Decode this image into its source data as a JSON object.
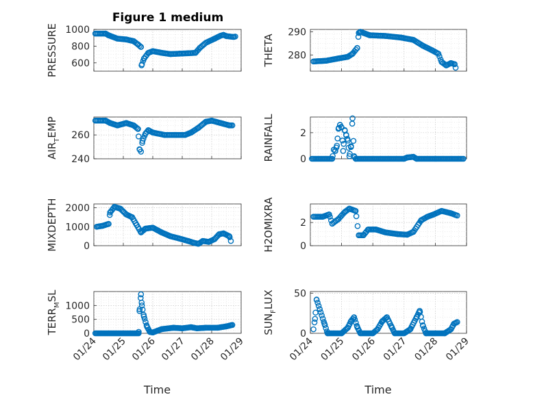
{
  "figure": {
    "title": "Figure 1 medium",
    "marker_color": "#0072BD"
  },
  "chart_data": [
    {
      "id": "pressure",
      "type": "scatter",
      "ylabel": "PRESSURE",
      "ylabel_sub": "",
      "ylabel_suffix": "",
      "xlim": [
        0,
        5
      ],
      "ylim": [
        500,
        1000
      ],
      "yticks": [
        600,
        800,
        1000
      ],
      "xticks": [
        0,
        1,
        2,
        3,
        4,
        5
      ],
      "xtick_labels": [
        "01/24",
        "01/25",
        "01/26",
        "01/27",
        "01/28",
        "01/29"
      ],
      "show_xticklabels": false,
      "xlabel": "",
      "grid": true,
      "keys": [
        [
          0.05,
          950
        ],
        [
          0.4,
          950
        ],
        [
          0.5,
          930
        ],
        [
          0.8,
          890
        ],
        [
          1.1,
          880
        ],
        [
          1.35,
          860
        ],
        [
          1.5,
          820
        ],
        [
          1.6,
          790
        ],
        [
          1.62,
          570
        ],
        [
          1.7,
          650
        ],
        [
          1.85,
          720
        ],
        [
          2.0,
          740
        ],
        [
          2.3,
          720
        ],
        [
          2.6,
          705
        ],
        [
          2.9,
          710
        ],
        [
          3.2,
          715
        ],
        [
          3.45,
          720
        ],
        [
          3.6,
          780
        ],
        [
          3.8,
          840
        ],
        [
          4.1,
          890
        ],
        [
          4.3,
          925
        ],
        [
          4.4,
          935
        ],
        [
          4.5,
          920
        ],
        [
          4.75,
          910
        ],
        [
          4.8,
          915
        ]
      ],
      "count": 115
    },
    {
      "id": "theta",
      "type": "scatter",
      "ylabel": "THETA",
      "ylabel_sub": "",
      "ylabel_suffix": "",
      "xlim": [
        0,
        5
      ],
      "ylim": [
        273,
        291
      ],
      "yticks": [
        280,
        290
      ],
      "xticks": [
        0,
        1,
        2,
        3,
        4,
        5
      ],
      "xtick_labels": [
        "01/24",
        "01/25",
        "01/26",
        "01/27",
        "01/28",
        "01/29"
      ],
      "show_xticklabels": false,
      "xlabel": "",
      "grid": true,
      "keys": [
        [
          0.1,
          277.2
        ],
        [
          0.5,
          277.5
        ],
        [
          0.9,
          278.5
        ],
        [
          1.2,
          279.2
        ],
        [
          1.35,
          280.5
        ],
        [
          1.5,
          283
        ],
        [
          1.55,
          289.5
        ],
        [
          1.6,
          290
        ],
        [
          1.9,
          288.5
        ],
        [
          2.4,
          288.2
        ],
        [
          2.9,
          287.5
        ],
        [
          3.3,
          286.5
        ],
        [
          3.6,
          284
        ],
        [
          3.9,
          282
        ],
        [
          4.1,
          280.5
        ],
        [
          4.2,
          277
        ],
        [
          4.35,
          275.5
        ],
        [
          4.5,
          276.5
        ],
        [
          4.62,
          276
        ],
        [
          4.65,
          274.5
        ]
      ],
      "count": 115
    },
    {
      "id": "airtemp",
      "type": "scatter",
      "ylabel": "AIR",
      "ylabel_sub": "T",
      "ylabel_suffix": "EMP",
      "xlim": [
        0,
        5
      ],
      "ylim": [
        240,
        275
      ],
      "yticks": [
        240,
        260
      ],
      "xticks": [
        0,
        1,
        2,
        3,
        4,
        5
      ],
      "xtick_labels": [
        "01/24",
        "01/25",
        "01/26",
        "01/27",
        "01/28",
        "01/29"
      ],
      "show_xticklabels": false,
      "xlabel": "",
      "grid": true,
      "keys": [
        [
          0.05,
          272
        ],
        [
          0.4,
          272
        ],
        [
          0.55,
          270
        ],
        [
          0.8,
          268
        ],
        [
          1.1,
          270
        ],
        [
          1.35,
          268
        ],
        [
          1.5,
          265
        ],
        [
          1.55,
          248
        ],
        [
          1.6,
          246
        ],
        [
          1.65,
          255
        ],
        [
          1.75,
          261
        ],
        [
          1.85,
          264
        ],
        [
          2.0,
          262
        ],
        [
          2.4,
          260
        ],
        [
          2.8,
          260
        ],
        [
          3.1,
          260
        ],
        [
          3.3,
          262
        ],
        [
          3.55,
          266
        ],
        [
          3.8,
          271
        ],
        [
          4.0,
          272
        ],
        [
          4.3,
          270
        ],
        [
          4.6,
          268
        ],
        [
          4.7,
          268
        ]
      ],
      "count": 115
    },
    {
      "id": "rainfall",
      "type": "scatter",
      "ylabel": "RAINFALL",
      "ylabel_sub": "",
      "ylabel_suffix": "",
      "xlim": [
        0,
        5
      ],
      "ylim": [
        0,
        3.2
      ],
      "yticks": [
        0,
        2
      ],
      "xticks": [
        0,
        1,
        2,
        3,
        4,
        5
      ],
      "xtick_labels": [
        "01/24",
        "01/25",
        "01/26",
        "01/27",
        "01/28",
        "01/29"
      ],
      "show_xticklabels": false,
      "xlabel": "",
      "grid": true,
      "keys": [
        [
          0.05,
          0
        ],
        [
          0.7,
          0
        ],
        [
          0.75,
          0.7
        ],
        [
          0.8,
          0.6
        ],
        [
          0.85,
          1.0
        ],
        [
          0.9,
          2.3
        ],
        [
          0.95,
          2.6
        ],
        [
          1.0,
          2.4
        ],
        [
          1.05,
          0.6
        ],
        [
          1.1,
          2.2
        ],
        [
          1.15,
          1.8
        ],
        [
          1.2,
          1.4
        ],
        [
          1.25,
          0.2
        ],
        [
          1.3,
          0.9
        ],
        [
          1.35,
          3.1
        ],
        [
          1.4,
          0.2
        ],
        [
          1.45,
          0
        ],
        [
          3.0,
          0
        ],
        [
          3.1,
          0.1
        ],
        [
          3.3,
          0.15
        ],
        [
          3.4,
          0
        ],
        [
          4.9,
          0
        ]
      ],
      "count": 125
    },
    {
      "id": "mixdepth",
      "type": "scatter",
      "ylabel": "MIXDEPTH",
      "ylabel_sub": "",
      "ylabel_suffix": "",
      "xlim": [
        0,
        5
      ],
      "ylim": [
        0,
        2200
      ],
      "yticks": [
        0,
        1000,
        2000
      ],
      "xticks": [
        0,
        1,
        2,
        3,
        4,
        5
      ],
      "xtick_labels": [
        "01/24",
        "01/25",
        "01/26",
        "01/27",
        "01/28",
        "01/29"
      ],
      "show_xticklabels": false,
      "xlabel": "",
      "grid": true,
      "keys": [
        [
          0.1,
          1000
        ],
        [
          0.3,
          1050
        ],
        [
          0.5,
          1150
        ],
        [
          0.55,
          1750
        ],
        [
          0.7,
          2050
        ],
        [
          0.9,
          1950
        ],
        [
          1.1,
          1650
        ],
        [
          1.3,
          1500
        ],
        [
          1.45,
          1100
        ],
        [
          1.6,
          700
        ],
        [
          1.75,
          900
        ],
        [
          2.0,
          950
        ],
        [
          2.3,
          700
        ],
        [
          2.6,
          500
        ],
        [
          2.9,
          380
        ],
        [
          3.2,
          250
        ],
        [
          3.4,
          150
        ],
        [
          3.55,
          100
        ],
        [
          3.7,
          250
        ],
        [
          3.9,
          200
        ],
        [
          4.1,
          350
        ],
        [
          4.25,
          600
        ],
        [
          4.4,
          650
        ],
        [
          4.6,
          500
        ],
        [
          4.65,
          250
        ]
      ],
      "count": 115
    },
    {
      "id": "h2omixra",
      "type": "scatter",
      "ylabel": "H2OMIXRA",
      "ylabel_sub": "",
      "ylabel_suffix": "",
      "xlim": [
        0,
        5
      ],
      "ylim": [
        0,
        3.6
      ],
      "yticks": [
        0,
        2
      ],
      "xticks": [
        0,
        1,
        2,
        3,
        4,
        5
      ],
      "xtick_labels": [
        "01/24",
        "01/25",
        "01/26",
        "01/27",
        "01/28",
        "01/29"
      ],
      "show_xticklabels": false,
      "xlabel": "",
      "grid": true,
      "keys": [
        [
          0.1,
          2.5
        ],
        [
          0.4,
          2.5
        ],
        [
          0.6,
          2.7
        ],
        [
          0.7,
          1.9
        ],
        [
          0.9,
          2.3
        ],
        [
          1.1,
          2.9
        ],
        [
          1.25,
          3.2
        ],
        [
          1.45,
          3.0
        ],
        [
          1.55,
          0.9
        ],
        [
          1.7,
          0.9
        ],
        [
          1.85,
          1.4
        ],
        [
          2.1,
          1.4
        ],
        [
          2.4,
          1.15
        ],
        [
          2.8,
          1.0
        ],
        [
          3.1,
          0.95
        ],
        [
          3.3,
          1.2
        ],
        [
          3.55,
          2.2
        ],
        [
          3.75,
          2.5
        ],
        [
          3.95,
          2.7
        ],
        [
          4.2,
          3.0
        ],
        [
          4.5,
          2.8
        ],
        [
          4.7,
          2.6
        ]
      ],
      "count": 115
    },
    {
      "id": "terrmsl",
      "type": "scatter",
      "ylabel": "TERR",
      "ylabel_sub": "M",
      "ylabel_suffix": "SL",
      "xlim": [
        0,
        5
      ],
      "ylim": [
        0,
        1500
      ],
      "yticks": [
        0,
        500,
        1000
      ],
      "xticks": [
        0,
        1,
        2,
        3,
        4,
        5
      ],
      "xtick_labels": [
        "01/24",
        "01/25",
        "01/26",
        "01/27",
        "01/28",
        "01/29"
      ],
      "show_xticklabels": true,
      "xlabel": "Time",
      "grid": true,
      "keys": [
        [
          0.05,
          0
        ],
        [
          1.52,
          0
        ],
        [
          1.55,
          800
        ],
        [
          1.6,
          1400
        ],
        [
          1.63,
          1000
        ],
        [
          1.7,
          600
        ],
        [
          1.8,
          250
        ],
        [
          1.9,
          50
        ],
        [
          2.0,
          30
        ],
        [
          2.3,
          150
        ],
        [
          2.7,
          200
        ],
        [
          3.0,
          180
        ],
        [
          3.3,
          220
        ],
        [
          3.5,
          180
        ],
        [
          3.8,
          200
        ],
        [
          4.2,
          200
        ],
        [
          4.5,
          250
        ],
        [
          4.7,
          300
        ]
      ],
      "count": 140
    },
    {
      "id": "sunflux",
      "type": "scatter",
      "ylabel": "SUN",
      "ylabel_sub": "F",
      "ylabel_suffix": "LUX",
      "xlim": [
        0,
        5
      ],
      "ylim": [
        0,
        52
      ],
      "yticks": [
        0,
        50
      ],
      "xticks": [
        0,
        1,
        2,
        3,
        4,
        5
      ],
      "xtick_labels": [
        "01/24",
        "01/25",
        "01/26",
        "01/27",
        "01/28",
        "01/29"
      ],
      "show_xticklabels": true,
      "xlabel": "Time",
      "grid": true,
      "keys": [
        [
          0.1,
          5
        ],
        [
          0.15,
          18
        ],
        [
          0.2,
          42
        ],
        [
          0.3,
          30
        ],
        [
          0.45,
          12
        ],
        [
          0.55,
          0
        ],
        [
          1.0,
          0
        ],
        [
          1.2,
          7
        ],
        [
          1.3,
          15
        ],
        [
          1.4,
          20
        ],
        [
          1.5,
          8
        ],
        [
          1.6,
          0
        ],
        [
          2.0,
          0
        ],
        [
          2.15,
          5
        ],
        [
          2.3,
          15
        ],
        [
          2.45,
          20
        ],
        [
          2.6,
          8
        ],
        [
          2.7,
          0
        ],
        [
          3.0,
          0
        ],
        [
          3.2,
          5
        ],
        [
          3.4,
          20
        ],
        [
          3.5,
          28
        ],
        [
          3.6,
          10
        ],
        [
          3.7,
          0
        ],
        [
          4.3,
          0
        ],
        [
          4.5,
          5
        ],
        [
          4.6,
          12
        ],
        [
          4.7,
          14
        ]
      ],
      "count": 140
    }
  ]
}
